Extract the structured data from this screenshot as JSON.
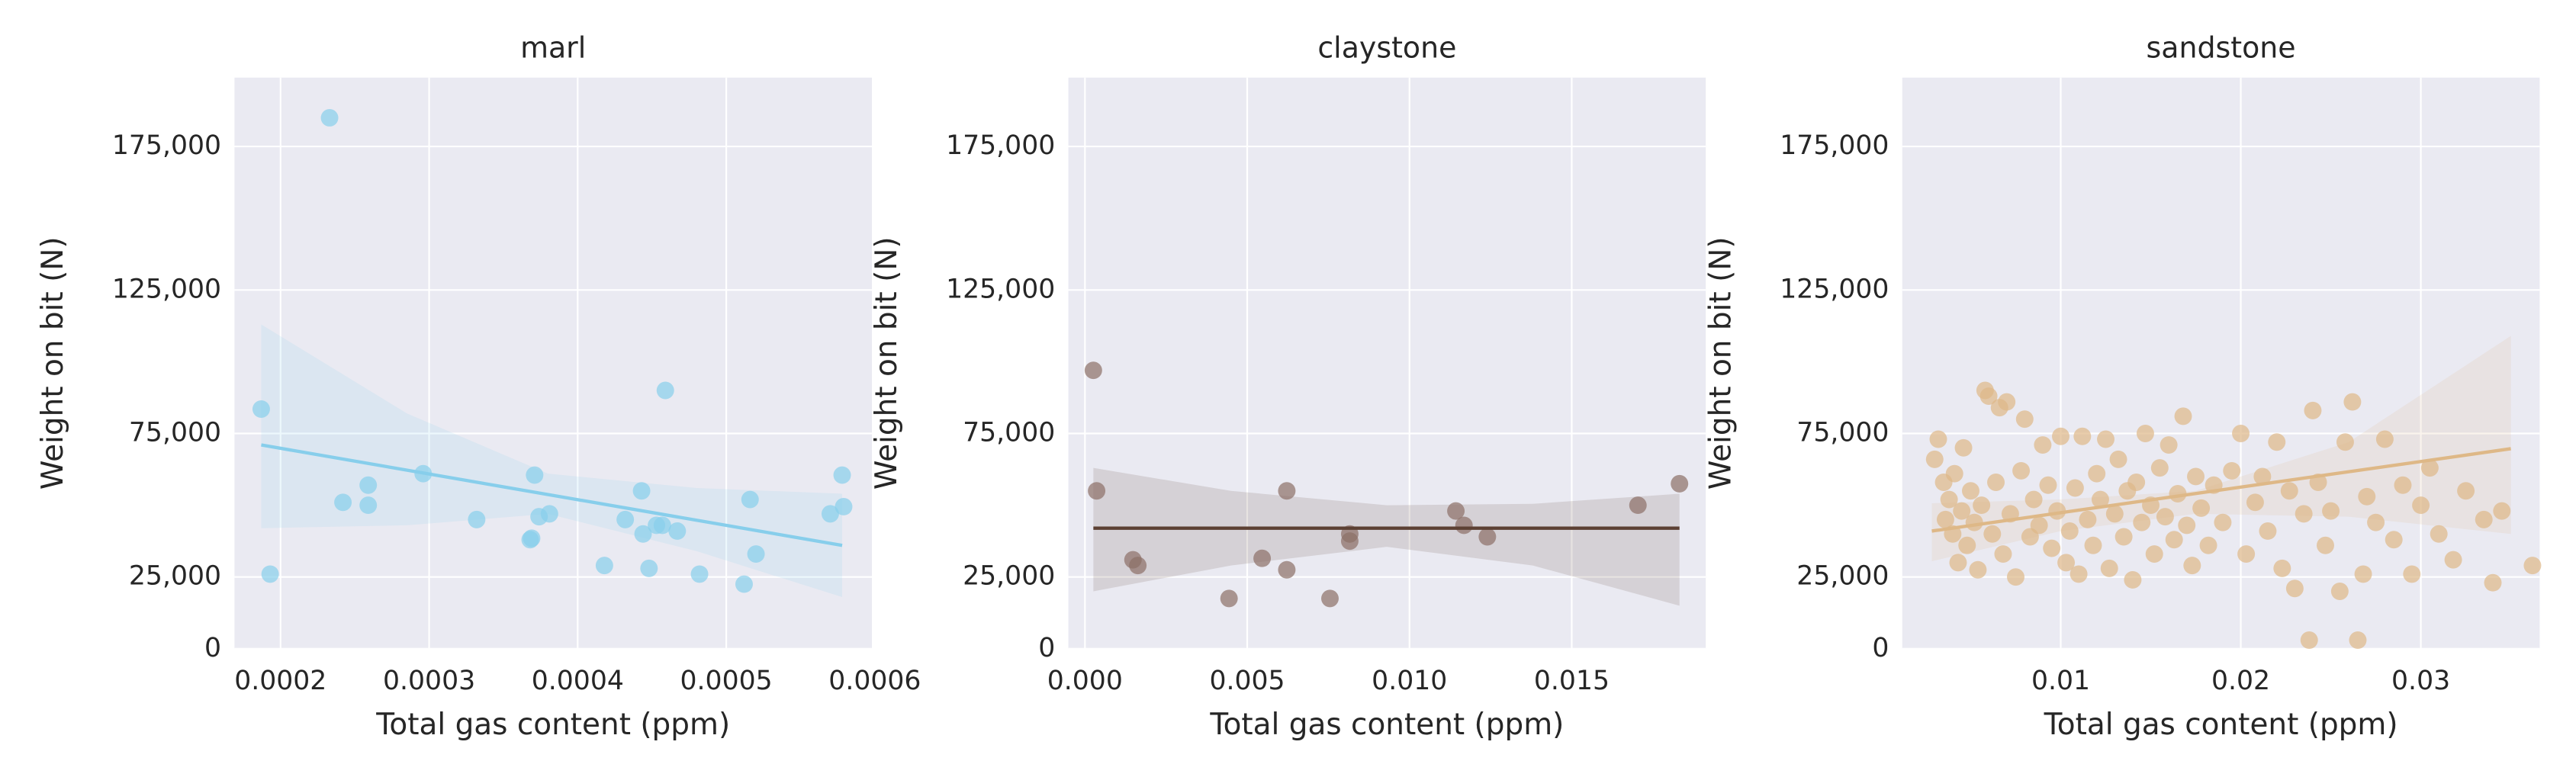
{
  "chart_data": [
    {
      "type": "scatter",
      "title": "marl",
      "xlabel": "Total gas content (ppm)",
      "ylabel": "Weight on bit (N)",
      "color": "#87ceeb",
      "line_color": "#87ceeb",
      "grid": true,
      "xlim": [
        0.000169,
        0.000598
      ],
      "ylim": [
        0,
        199000
      ],
      "xticks": [
        0.0002,
        0.0003,
        0.0004,
        0.0005,
        0.0006
      ],
      "yticks": [
        0,
        {
          "value": 25000,
          "label": "25,000"
        },
        {
          "value": 75000,
          "label": "75,000"
        },
        {
          "value": 125000,
          "label": "125,000"
        },
        {
          "value": 175000,
          "label": "175,000"
        }
      ],
      "x": [
        0.000187,
        0.000193,
        0.000233,
        0.000242,
        0.000259,
        0.000259,
        0.000296,
        0.000332,
        0.000368,
        0.000369,
        0.000371,
        0.000374,
        0.000381,
        0.000418,
        0.000432,
        0.000443,
        0.000444,
        0.000448,
        0.000453,
        0.000457,
        0.000459,
        0.000467,
        0.000482,
        0.000512,
        0.000516,
        0.00052,
        0.00057,
        0.000578,
        0.000579
      ],
      "y": [
        83500,
        26000,
        185000,
        51000,
        57000,
        50000,
        61000,
        45000,
        38000,
        38500,
        60500,
        46000,
        47000,
        29000,
        45000,
        55000,
        40000,
        28000,
        43000,
        43000,
        90000,
        41000,
        26000,
        22500,
        52000,
        33000,
        47000,
        60500,
        49500
      ],
      "regression": {
        "x": [
          0.000187,
          0.000578
        ],
        "y": [
          71000,
          36000
        ]
      },
      "ci_band": {
        "x": [
          0.000187,
          0.000285,
          0.00038,
          0.00048,
          0.000578
        ],
        "upper": [
          113000,
          82000,
          61000,
          56000,
          54000
        ],
        "lower": [
          42000,
          43000,
          47000,
          34000,
          18000
        ]
      }
    },
    {
      "type": "scatter",
      "title": "claystone",
      "xlabel": "Total gas content (ppm)",
      "ylabel": "Weight on bit (N)",
      "color": "#8b6f66",
      "line_color": "#5c4033",
      "grid": true,
      "xlim": [
        -0.00051,
        0.01913
      ],
      "ylim": [
        0,
        199000
      ],
      "xticks": [
        {
          "value": 0,
          "label": "0.000"
        },
        0.005,
        {
          "value": 0.01,
          "label": "0.010"
        },
        0.015
      ],
      "yticks": [
        0,
        {
          "value": 25000,
          "label": "25,000"
        },
        {
          "value": 75000,
          "label": "75,000"
        },
        {
          "value": 125000,
          "label": "125,000"
        },
        {
          "value": 175000,
          "label": "175,000"
        }
      ],
      "x": [
        0.00026,
        0.00036,
        0.00148,
        0.00163,
        0.00444,
        0.00546,
        0.00622,
        0.00622,
        0.00755,
        0.00816,
        0.00816,
        0.01143,
        0.01168,
        0.0124,
        0.01704,
        0.01832
      ],
      "y": [
        97000,
        55000,
        31000,
        29000,
        17500,
        31500,
        55000,
        27500,
        17500,
        40000,
        37500,
        48000,
        43000,
        39000,
        50000,
        57500
      ],
      "regression": {
        "x": [
          0.00026,
          0.01832
        ],
        "y": [
          42000,
          42000
        ]
      },
      "ci_band": {
        "x": [
          0.00026,
          0.0045,
          0.0093,
          0.0138,
          0.01832
        ],
        "upper": [
          63000,
          55000,
          50000,
          50500,
          54000
        ],
        "lower": [
          20000,
          29000,
          35500,
          29000,
          15000
        ]
      }
    },
    {
      "type": "scatter",
      "title": "sandstone",
      "xlabel": "Total gas content (ppm)",
      "ylabel": "Weight on bit (N)",
      "color": "#deb887",
      "line_color": "#deb887",
      "grid": true,
      "xlim": [
        0.0012,
        0.0366
      ],
      "ylim": [
        0,
        199000
      ],
      "xticks": [
        0.01,
        0.02,
        0.03
      ],
      "yticks": [
        0,
        {
          "value": 25000,
          "label": "25,000"
        },
        {
          "value": 75000,
          "label": "75,000"
        },
        {
          "value": 125000,
          "label": "125,000"
        },
        {
          "value": 175000,
          "label": "175,000"
        }
      ],
      "x": [
        0.003,
        0.0032,
        0.0035,
        0.0036,
        0.0038,
        0.004,
        0.0041,
        0.0043,
        0.0045,
        0.0046,
        0.0048,
        0.005,
        0.0052,
        0.0054,
        0.0056,
        0.0058,
        0.006,
        0.0062,
        0.0064,
        0.0066,
        0.0068,
        0.007,
        0.0072,
        0.0075,
        0.0078,
        0.008,
        0.0083,
        0.0085,
        0.0088,
        0.009,
        0.0093,
        0.0095,
        0.0098,
        0.01,
        0.0103,
        0.0105,
        0.0108,
        0.011,
        0.0112,
        0.0115,
        0.0118,
        0.012,
        0.0122,
        0.0125,
        0.0127,
        0.013,
        0.0132,
        0.0135,
        0.0137,
        0.014,
        0.0142,
        0.0145,
        0.0147,
        0.015,
        0.0152,
        0.0155,
        0.0158,
        0.016,
        0.0163,
        0.0165,
        0.0168,
        0.017,
        0.0173,
        0.0175,
        0.0178,
        0.0182,
        0.0185,
        0.019,
        0.0195,
        0.02,
        0.0203,
        0.0208,
        0.0212,
        0.0215,
        0.022,
        0.0223,
        0.0227,
        0.023,
        0.0235,
        0.0238,
        0.024,
        0.0243,
        0.0247,
        0.025,
        0.0255,
        0.0258,
        0.0262,
        0.0265,
        0.0268,
        0.027,
        0.0275,
        0.028,
        0.0285,
        0.029,
        0.0295,
        0.03,
        0.0305,
        0.031,
        0.0318,
        0.0325,
        0.0335,
        0.034,
        0.0345,
        0.0362
      ],
      "y": [
        66000,
        73000,
        58000,
        45000,
        52000,
        40000,
        61000,
        30000,
        48000,
        70000,
        36000,
        55000,
        44000,
        27500,
        50000,
        90000,
        88000,
        40000,
        58000,
        84000,
        33000,
        86000,
        47000,
        25000,
        62000,
        80000,
        39000,
        52000,
        43000,
        71000,
        57000,
        35000,
        48000,
        74000,
        30000,
        41000,
        56000,
        26000,
        74000,
        45000,
        36000,
        61000,
        52000,
        73000,
        28000,
        47000,
        66000,
        39000,
        55000,
        24000,
        58000,
        44000,
        75000,
        50000,
        33000,
        63000,
        46000,
        71000,
        38000,
        54000,
        81000,
        43000,
        29000,
        60000,
        49000,
        36000,
        57000,
        44000,
        62000,
        75000,
        33000,
        51000,
        60000,
        41000,
        72000,
        28000,
        55000,
        21000,
        47000,
        3000,
        83000,
        58000,
        36000,
        48000,
        20000,
        72000,
        86000,
        3000,
        26000,
        53000,
        44000,
        73000,
        38000,
        57000,
        26000,
        50000,
        63000,
        40000,
        31000,
        55000,
        45000,
        23000,
        48000,
        29000
      ],
      "regression": {
        "x": [
          0.00284,
          0.035
        ],
        "y": [
          41000,
          69700
        ]
      },
      "ci_band": {
        "x": [
          0.00284,
          0.01,
          0.0175,
          0.026,
          0.035
        ],
        "upper": [
          50700,
          52000,
          55000,
          72000,
          109000
        ],
        "lower": [
          30500,
          41000,
          47000,
          46000,
          40000
        ]
      }
    }
  ]
}
